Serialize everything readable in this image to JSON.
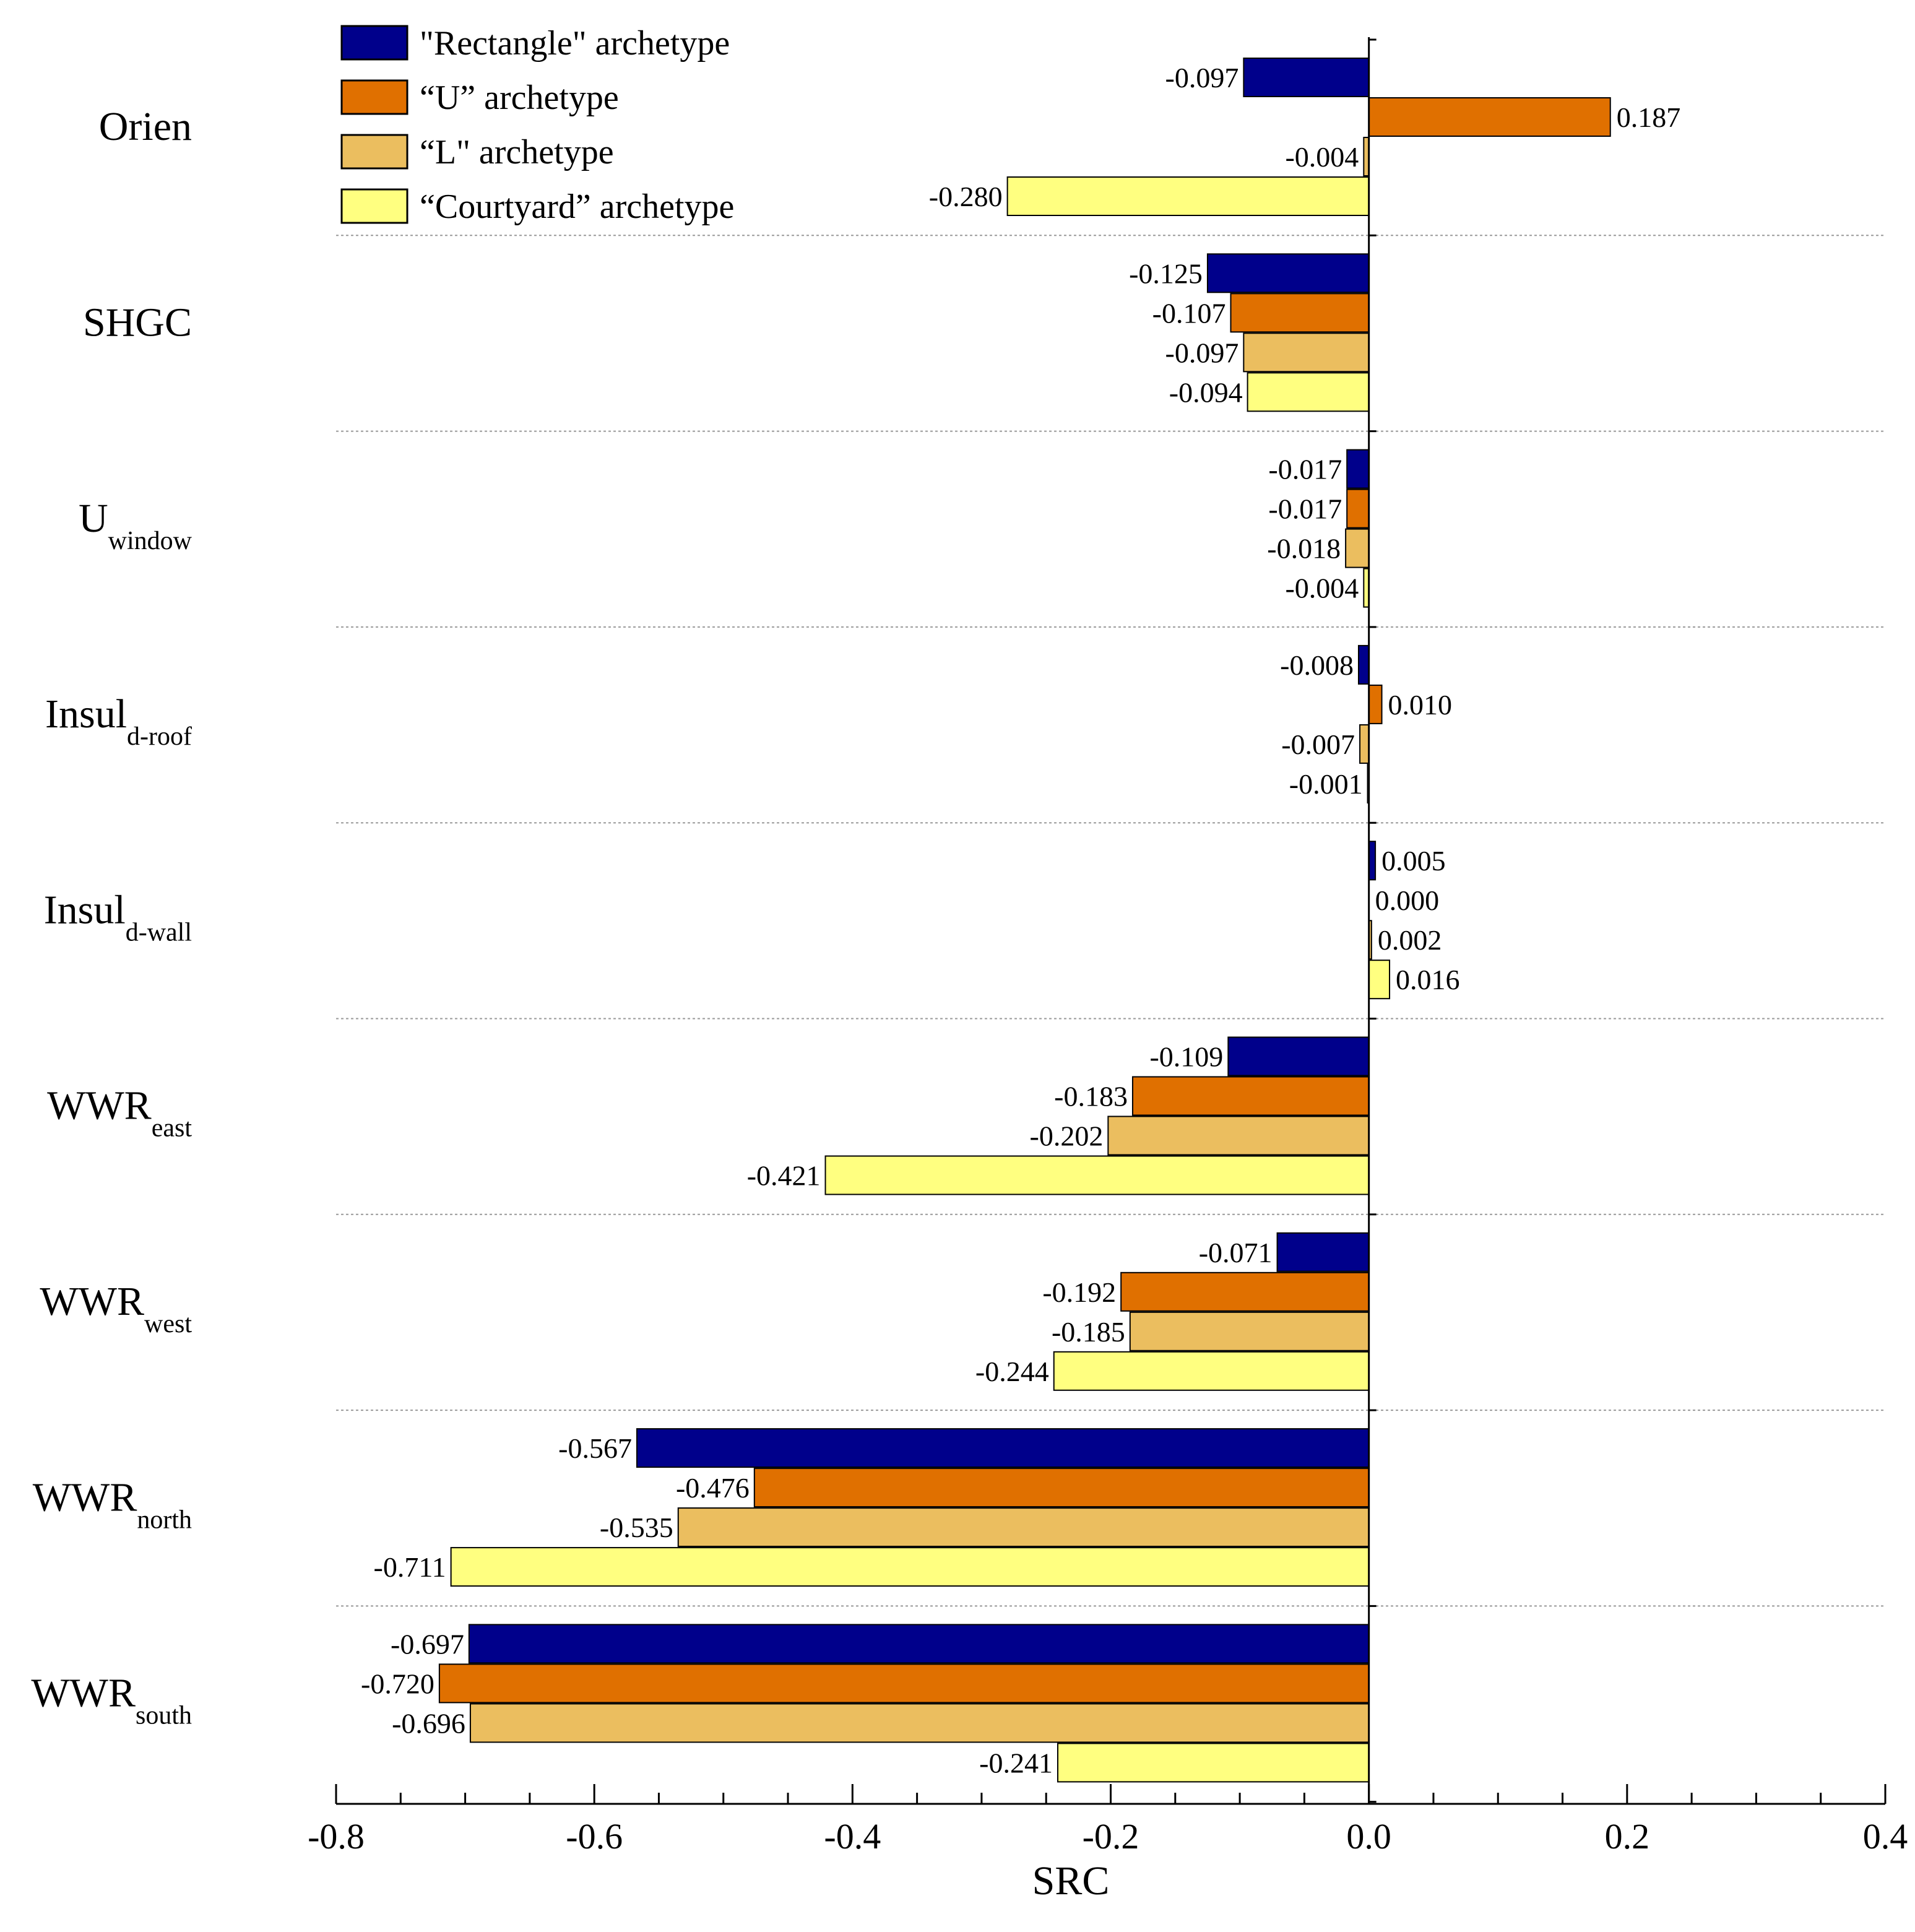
{
  "chart_data": {
    "type": "bar",
    "orientation": "horizontal",
    "xlabel": "SRC",
    "xlim": [
      -0.8,
      0.4
    ],
    "x_ticks": [
      "-0.8",
      "-0.6",
      "-0.4",
      "-0.2",
      "0.0",
      "0.2",
      "0.4"
    ],
    "grid": "dotted separators between categories",
    "legend_position": "top-left",
    "categories": [
      {
        "main": "Orien",
        "sub": ""
      },
      {
        "main": "SHGC",
        "sub": ""
      },
      {
        "main": "U",
        "sub": "window"
      },
      {
        "main": "Insul",
        "sub": "d-roof"
      },
      {
        "main": "Insul",
        "sub": "d-wall"
      },
      {
        "main": "WWR",
        "sub": "east"
      },
      {
        "main": "WWR",
        "sub": "west"
      },
      {
        "main": "WWR",
        "sub": "north"
      },
      {
        "main": "WWR",
        "sub": "south"
      }
    ],
    "series": [
      {
        "name": "\"Rectangle\" archetype",
        "color": "#00008b",
        "values": [
          -0.097,
          -0.125,
          -0.017,
          -0.008,
          0.005,
          -0.109,
          -0.071,
          -0.567,
          -0.697
        ],
        "labels": [
          "-0.097",
          "-0.125",
          "-0.017",
          "-0.008",
          "0.005",
          "-0.109",
          "-0.071",
          "-0.567",
          "-0.697"
        ]
      },
      {
        "name": "“U” archetype",
        "color": "#e07000",
        "values": [
          0.187,
          -0.107,
          -0.017,
          0.01,
          0.0,
          -0.183,
          -0.192,
          -0.476,
          -0.72
        ],
        "labels": [
          "0.187",
          "-0.107",
          "-0.017",
          "0.010",
          "0.000",
          "-0.183",
          "-0.192",
          "-0.476",
          "-0.720"
        ]
      },
      {
        "name": "“L\" archetype",
        "color": "#ebbe5f",
        "values": [
          -0.004,
          -0.097,
          -0.018,
          -0.007,
          0.002,
          -0.202,
          -0.185,
          -0.535,
          -0.696
        ],
        "labels": [
          "-0.004",
          "-0.097",
          "-0.018",
          "-0.007",
          "0.002",
          "-0.202",
          "-0.185",
          "-0.535",
          "-0.696"
        ]
      },
      {
        "name": "“Courtyard” archetype",
        "color": "#ffff80",
        "values": [
          -0.28,
          -0.094,
          -0.004,
          -0.001,
          0.016,
          -0.421,
          -0.244,
          -0.711,
          -0.241
        ],
        "labels": [
          "-0.280",
          "-0.094",
          "-0.004",
          "-0.001",
          "0.016",
          "-0.421",
          "-0.244",
          "-0.711",
          "-0.241"
        ]
      }
    ]
  }
}
